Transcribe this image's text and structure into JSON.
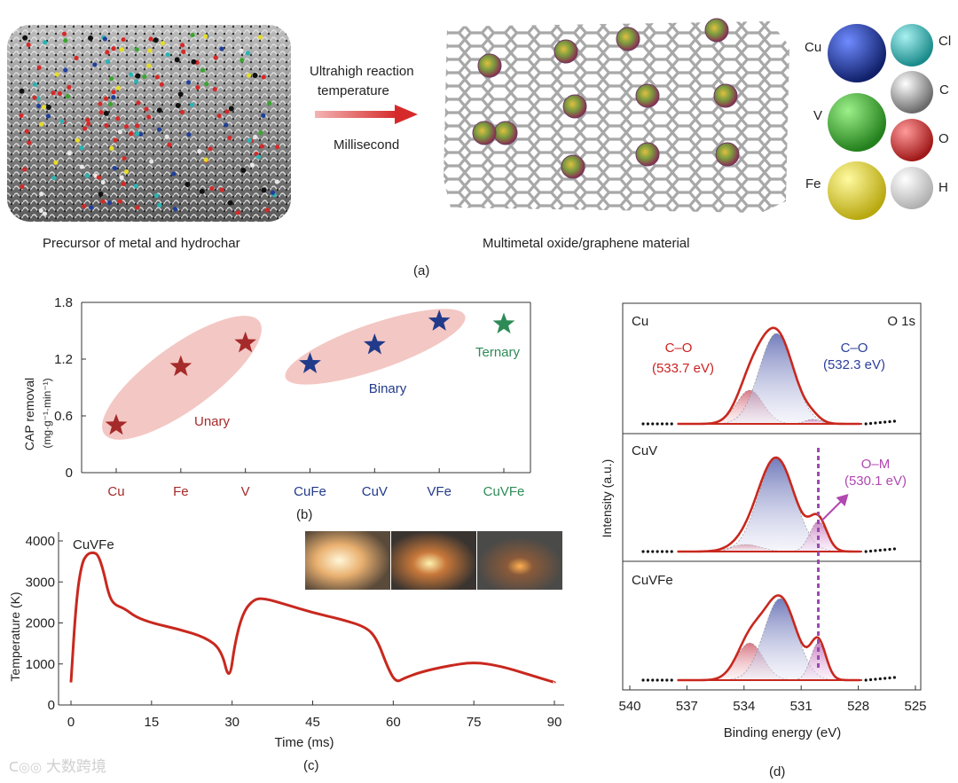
{
  "panel_a": {
    "precursor_caption": "Precursor of metal and hydrochar",
    "product_caption": "Multimetal oxide/graphene material",
    "arrow_label_line1": "Ultrahigh reaction",
    "arrow_label_line2": "temperature",
    "arrow_label_line3": "Millisecond",
    "panel_label": "(a)",
    "legend": [
      {
        "symbol": "Cu",
        "color": "#1f3f9a"
      },
      {
        "symbol": "Cl",
        "color": "#2bb3b3"
      },
      {
        "symbol": "V",
        "color": "#3aa52e"
      },
      {
        "symbol": "C",
        "color": "#9a9a9a"
      },
      {
        "symbol": "O",
        "color": "#d42a2a"
      },
      {
        "symbol": "Fe",
        "color": "#e6dc2a"
      },
      {
        "symbol": "H",
        "color": "#e8e8e8"
      }
    ]
  },
  "chart_data": [
    {
      "id": "b",
      "type": "scatter",
      "marker": "star",
      "panel_label": "(b)",
      "ylabel": "CAP removal",
      "ylabel_units": "(mg·g⁻¹·min⁻¹)",
      "ylim": [
        0,
        1.8
      ],
      "yticks": [
        "0",
        "0.6",
        "1.2",
        "1.8"
      ],
      "categories": [
        "Cu",
        "Fe",
        "V",
        "CuFe",
        "CuV",
        "VFe",
        "CuVFe"
      ],
      "category_colors": [
        "#a52a2a",
        "#a52a2a",
        "#a52a2a",
        "#223a8a",
        "#223a8a",
        "#223a8a",
        "#2e8b57"
      ],
      "values": [
        0.5,
        1.12,
        1.37,
        1.15,
        1.35,
        1.6,
        1.57
      ],
      "groups": [
        {
          "name": "Unary",
          "color": "#a52a2a"
        },
        {
          "name": "Binary",
          "color": "#223a8a"
        },
        {
          "name": "Ternary",
          "color": "#2e8b57"
        }
      ]
    },
    {
      "id": "c",
      "type": "line",
      "panel_label": "(c)",
      "series_label": "CuVFe",
      "xlabel": "Time (ms)",
      "ylabel": "Temperature (K)",
      "xlim": [
        0,
        90
      ],
      "ylim": [
        0,
        4000
      ],
      "xticks": [
        "0",
        "15",
        "30",
        "45",
        "60",
        "75",
        "90"
      ],
      "yticks": [
        "0",
        "1000",
        "2000",
        "3000",
        "4000"
      ],
      "line_color": "#c8281e",
      "x": [
        0,
        1,
        2,
        3,
        4,
        5,
        6,
        7,
        8,
        10,
        12,
        15,
        20,
        25,
        28,
        29.5,
        30.5,
        32,
        34,
        36,
        40,
        45,
        50,
        55,
        57,
        59,
        60.5,
        62,
        65,
        70,
        75,
        80,
        85,
        90
      ],
      "y": [
        550,
        2600,
        3450,
        3680,
        3720,
        3680,
        3300,
        2700,
        2450,
        2350,
        2150,
        2000,
        1850,
        1650,
        1350,
        550,
        1500,
        2250,
        2580,
        2600,
        2450,
        2250,
        2100,
        1900,
        1600,
        900,
        550,
        650,
        800,
        950,
        1050,
        950,
        750,
        550
      ]
    },
    {
      "id": "d",
      "type": "line",
      "panel_label": "(d)",
      "xlabel": "Binding energy (eV)",
      "ylabel": "Intensity (a.u.)",
      "x_reversed": true,
      "xlim": [
        540,
        525
      ],
      "xticks": [
        "540",
        "537",
        "534",
        "531",
        "528",
        "525"
      ],
      "subplots": [
        {
          "label": "Cu",
          "corner_label": "O 1s",
          "annotations": [
            {
              "text_line1": "C–O",
              "text_line2": "(533.7 eV)",
              "color": "#cc2222"
            },
            {
              "text_line1": "C–O",
              "text_line2": "(532.3 eV)",
              "color": "#2a3f9a"
            }
          ]
        },
        {
          "label": "CuV",
          "annotations": [
            {
              "text_line1": "O–M",
              "text_line2": "(530.1 eV)",
              "color": "#b048b0"
            }
          ]
        },
        {
          "label": "CuVFe",
          "annotations": []
        }
      ]
    }
  ],
  "watermark": "大数跨境"
}
